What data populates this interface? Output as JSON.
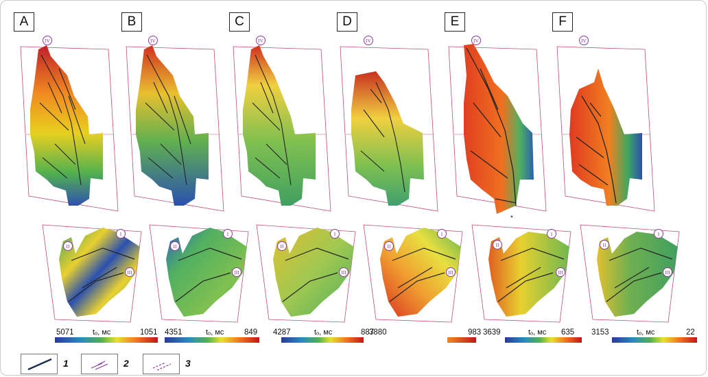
{
  "panels": [
    {
      "label": "A",
      "scale_left": "5071",
      "scale_right": "1051",
      "unit": "tₒ, мс"
    },
    {
      "label": "B",
      "scale_left": "4351",
      "scale_right": "849",
      "unit": "tₒ, мс"
    },
    {
      "label": "C",
      "scale_left": "4287",
      "scale_right": "887",
      "unit": "tₒ, мс"
    },
    {
      "label": "D",
      "scale_left": "3880",
      "scale_right": "983",
      "unit": ""
    },
    {
      "label": "E",
      "scale_left": "3639",
      "scale_right": "635",
      "unit": "tₒ, мс"
    },
    {
      "label": "F",
      "scale_left": "3153",
      "scale_right": "22",
      "unit": "tₒ, мс"
    }
  ],
  "markers": {
    "i": "I",
    "ii": "II",
    "iii": "III",
    "iv": "IV"
  },
  "legend": [
    {
      "num": "1",
      "symbol": "fault-line"
    },
    {
      "num": "2",
      "symbol": "purple-dashed-lines"
    },
    {
      "num": "3",
      "symbol": "purple-dotted-lines"
    }
  ],
  "colors": {
    "outline": "#c0506a",
    "marker": "#8e3aa0",
    "fault": "#222222"
  }
}
